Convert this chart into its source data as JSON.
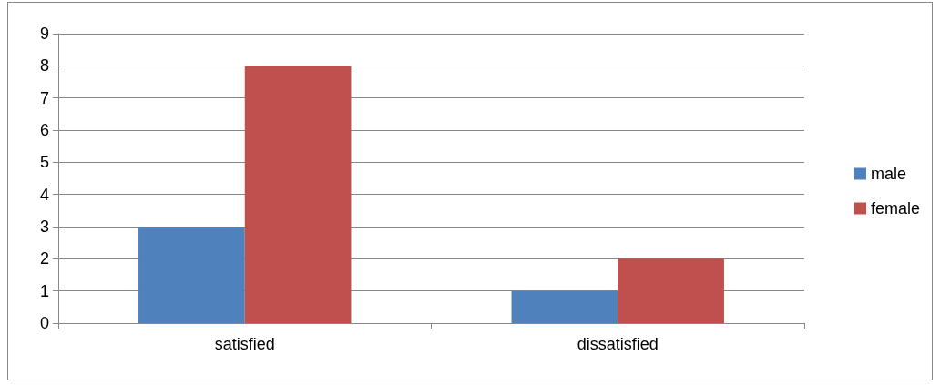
{
  "chart_data": {
    "type": "bar",
    "categories": [
      "satisfied",
      "dissatisfied"
    ],
    "series": [
      {
        "name": "male",
        "color": "#4f81bd",
        "values": [
          3,
          1
        ]
      },
      {
        "name": "female",
        "color": "#c0504d",
        "values": [
          8,
          2
        ]
      }
    ],
    "ylim": [
      0,
      9
    ],
    "yticks": [
      0,
      1,
      2,
      3,
      4,
      5,
      6,
      7,
      8,
      9
    ],
    "grid": "y",
    "legend": "right"
  }
}
